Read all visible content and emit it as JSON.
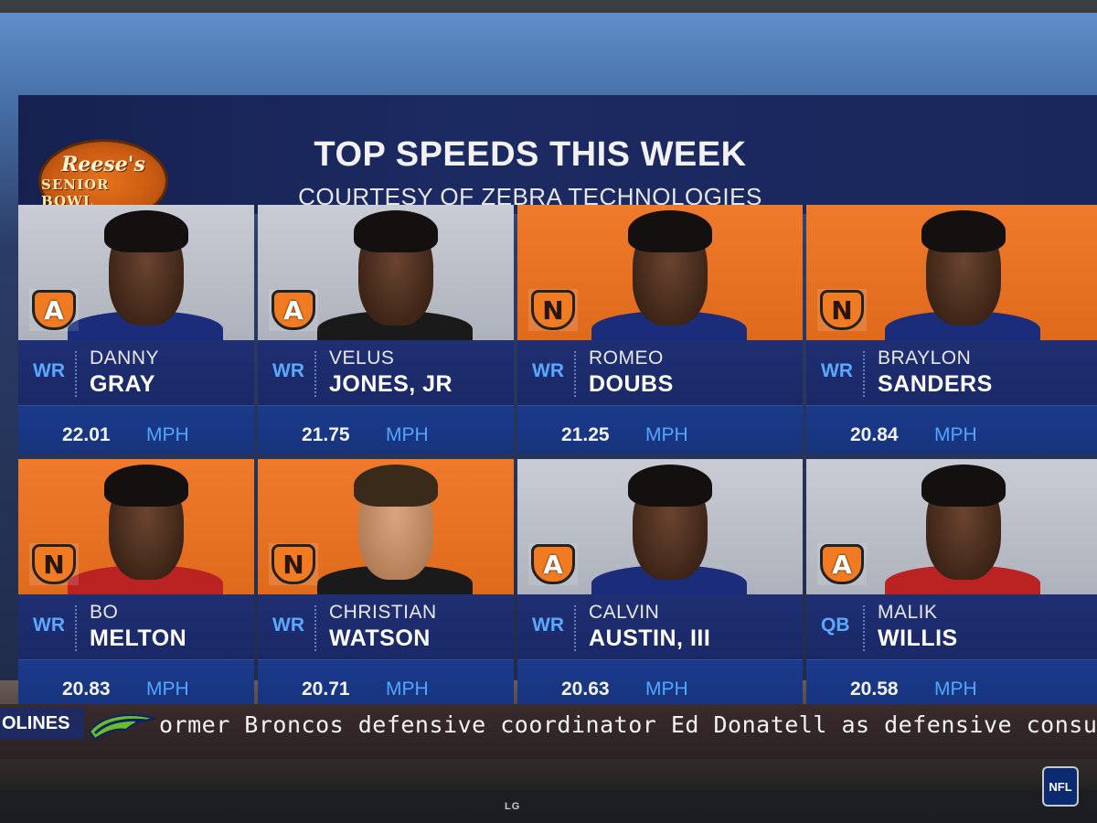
{
  "header": {
    "logo_top": "Reese's",
    "logo_bottom": "SENIOR BOWL",
    "title": "TOP SPEEDS THIS WEEK",
    "subtitle": "COURTESY OF ZEBRA TECHNOLOGIES"
  },
  "players": [
    {
      "pos": "WR",
      "first": "DANNY",
      "last": "GRAY",
      "speed": "22.01",
      "unit": "MPH",
      "bg": "gray",
      "team": "A"
    },
    {
      "pos": "WR",
      "first": "VELUS",
      "last": "JONES, JR",
      "speed": "21.75",
      "unit": "MPH",
      "bg": "gray",
      "team": "A"
    },
    {
      "pos": "WR",
      "first": "ROMEO",
      "last": "DOUBS",
      "speed": "21.25",
      "unit": "MPH",
      "bg": "orange",
      "team": "N"
    },
    {
      "pos": "WR",
      "first": "BRAYLON",
      "last": "SANDERS",
      "speed": "20.84",
      "unit": "MPH",
      "bg": "orange",
      "team": "N"
    },
    {
      "pos": "WR",
      "first": "BO",
      "last": "MELTON",
      "speed": "20.83",
      "unit": "MPH",
      "bg": "orange",
      "team": "N"
    },
    {
      "pos": "WR",
      "first": "CHRISTIAN",
      "last": "WATSON",
      "speed": "20.71",
      "unit": "MPH",
      "bg": "orange",
      "team": "N"
    },
    {
      "pos": "WR",
      "first": "CALVIN",
      "last": "AUSTIN, III",
      "speed": "20.63",
      "unit": "MPH",
      "bg": "gray",
      "team": "A"
    },
    {
      "pos": "QB",
      "first": "MALIK",
      "last": "WILLIS",
      "speed": "20.58",
      "unit": "MPH",
      "bg": "gray",
      "team": "A"
    }
  ],
  "ticker": {
    "tag": "OLINES",
    "text": "ormer Broncos defensive coordinator Ed Donatell as defensive consultant"
  },
  "footer": {
    "nfl": "NFL",
    "brand": "LG"
  },
  "colors": {
    "orange": "#e06a1c",
    "navy": "#1d2a60",
    "accent_blue": "#52a5ff"
  }
}
